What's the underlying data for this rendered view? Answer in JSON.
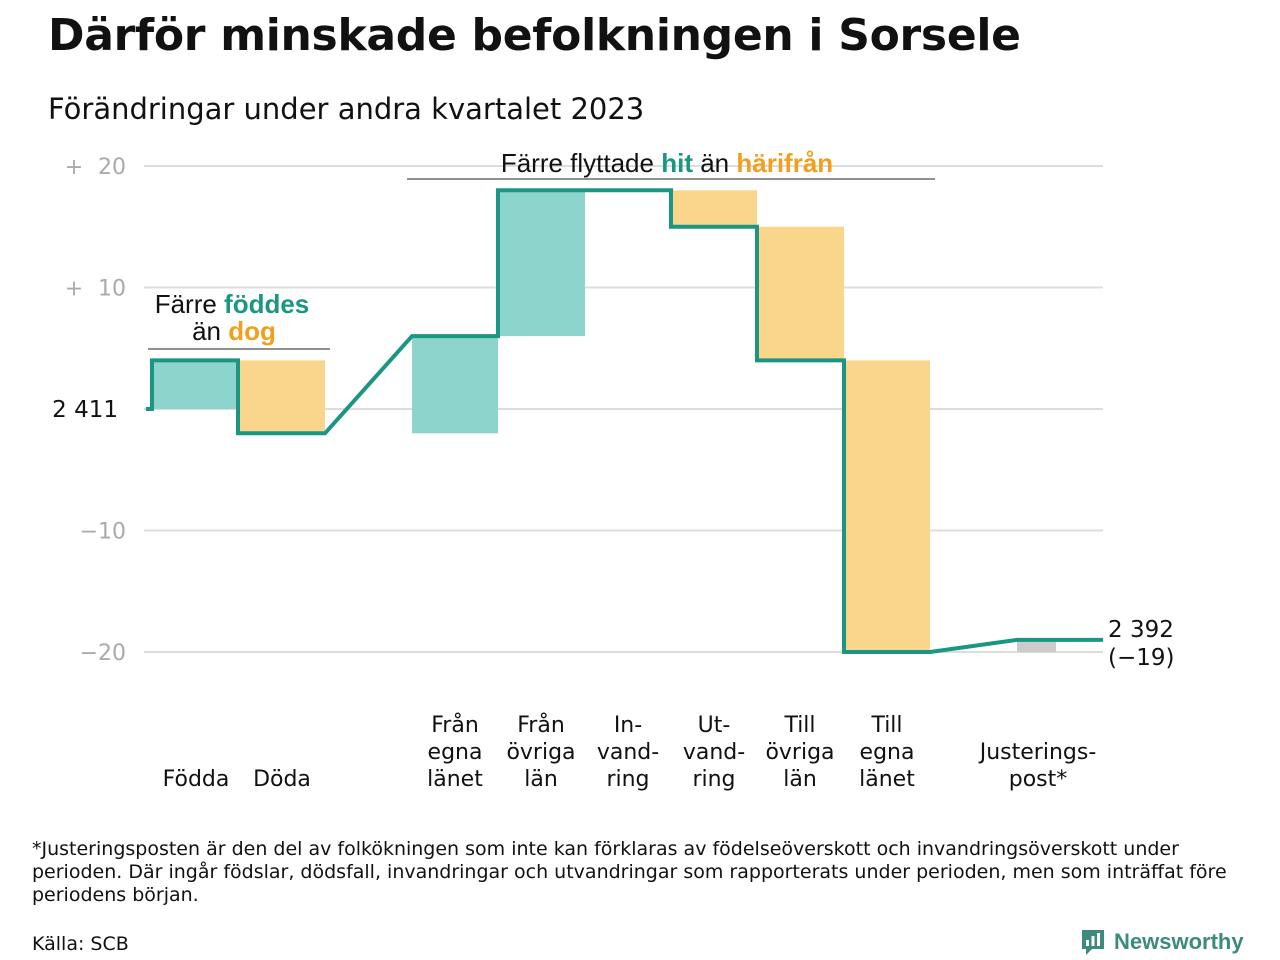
{
  "title": "Därför minskade befolkningen i Sorsele",
  "subtitle": "Förändringar under andra kvartalet 2023",
  "chart_data": {
    "type": "waterfall",
    "start_value": 2411,
    "end_label_value": "2 392",
    "end_label_change": "(−19)",
    "start_label": "2  411",
    "y_range": [
      -22,
      21
    ],
    "grid": true,
    "y_ticks": [
      {
        "value": 20,
        "sign": "+",
        "label": "20"
      },
      {
        "value": 10,
        "sign": "+",
        "label": "10"
      },
      {
        "value": -10,
        "sign": "",
        "label": "−10"
      },
      {
        "value": -20,
        "sign": "",
        "label": "−20"
      }
    ],
    "steps": [
      {
        "category": [
          "Födda"
        ],
        "value": 4,
        "kind": "inflow"
      },
      {
        "category": [
          "Döda"
        ],
        "value": -6,
        "kind": "outflow"
      },
      {
        "category": [
          "Från",
          "egna",
          "länet"
        ],
        "value": 8,
        "kind": "inflow"
      },
      {
        "category": [
          "Från",
          "övriga",
          "län"
        ],
        "value": 12,
        "kind": "inflow"
      },
      {
        "category": [
          "In-",
          "vand-",
          "ring"
        ],
        "value": 0,
        "kind": "inflow"
      },
      {
        "category": [
          "Ut-",
          "vand-",
          "ring"
        ],
        "value": -3,
        "kind": "outflow"
      },
      {
        "category": [
          "Till",
          "övriga",
          "län"
        ],
        "value": -11,
        "kind": "outflow"
      },
      {
        "category": [
          "Till",
          "egna",
          "länet"
        ],
        "value": -24,
        "kind": "outflow"
      },
      {
        "category": [
          "Justerings-",
          "post*"
        ],
        "value": 1,
        "kind": "adjustment"
      }
    ],
    "annotations": [
      {
        "id": "births",
        "parts": [
          [
            "Färre ",
            "plain"
          ],
          [
            "föddes",
            "hit"
          ]
        ],
        "parts2": [
          [
            "än ",
            "plain"
          ],
          [
            "dog",
            "dep"
          ]
        ]
      },
      {
        "id": "moves",
        "parts": [
          [
            "Färre flyttade ",
            "plain"
          ],
          [
            "hit",
            "hit"
          ],
          [
            " än ",
            "plain"
          ],
          [
            "härifrån",
            "dep"
          ]
        ]
      }
    ],
    "colors": {
      "line": "#1a9682",
      "inflow": "#8dd5cc",
      "outflow": "#fad68c",
      "adjustment": "#cccccc",
      "grid": "#dddddd"
    }
  },
  "footnote": "*Justeringsposten är den del av folkökningen som inte kan förklaras av födelseöverskott och invandringsöverskott under perioden. Där ingår födslar, dödsfall, invandringar och utvandringar som rapporterats under perioden, men som inträffat före periodens början.",
  "source": "Källa: SCB",
  "brand": {
    "name": "Newsworthy",
    "icon": "newsworthy-logo-icon"
  }
}
